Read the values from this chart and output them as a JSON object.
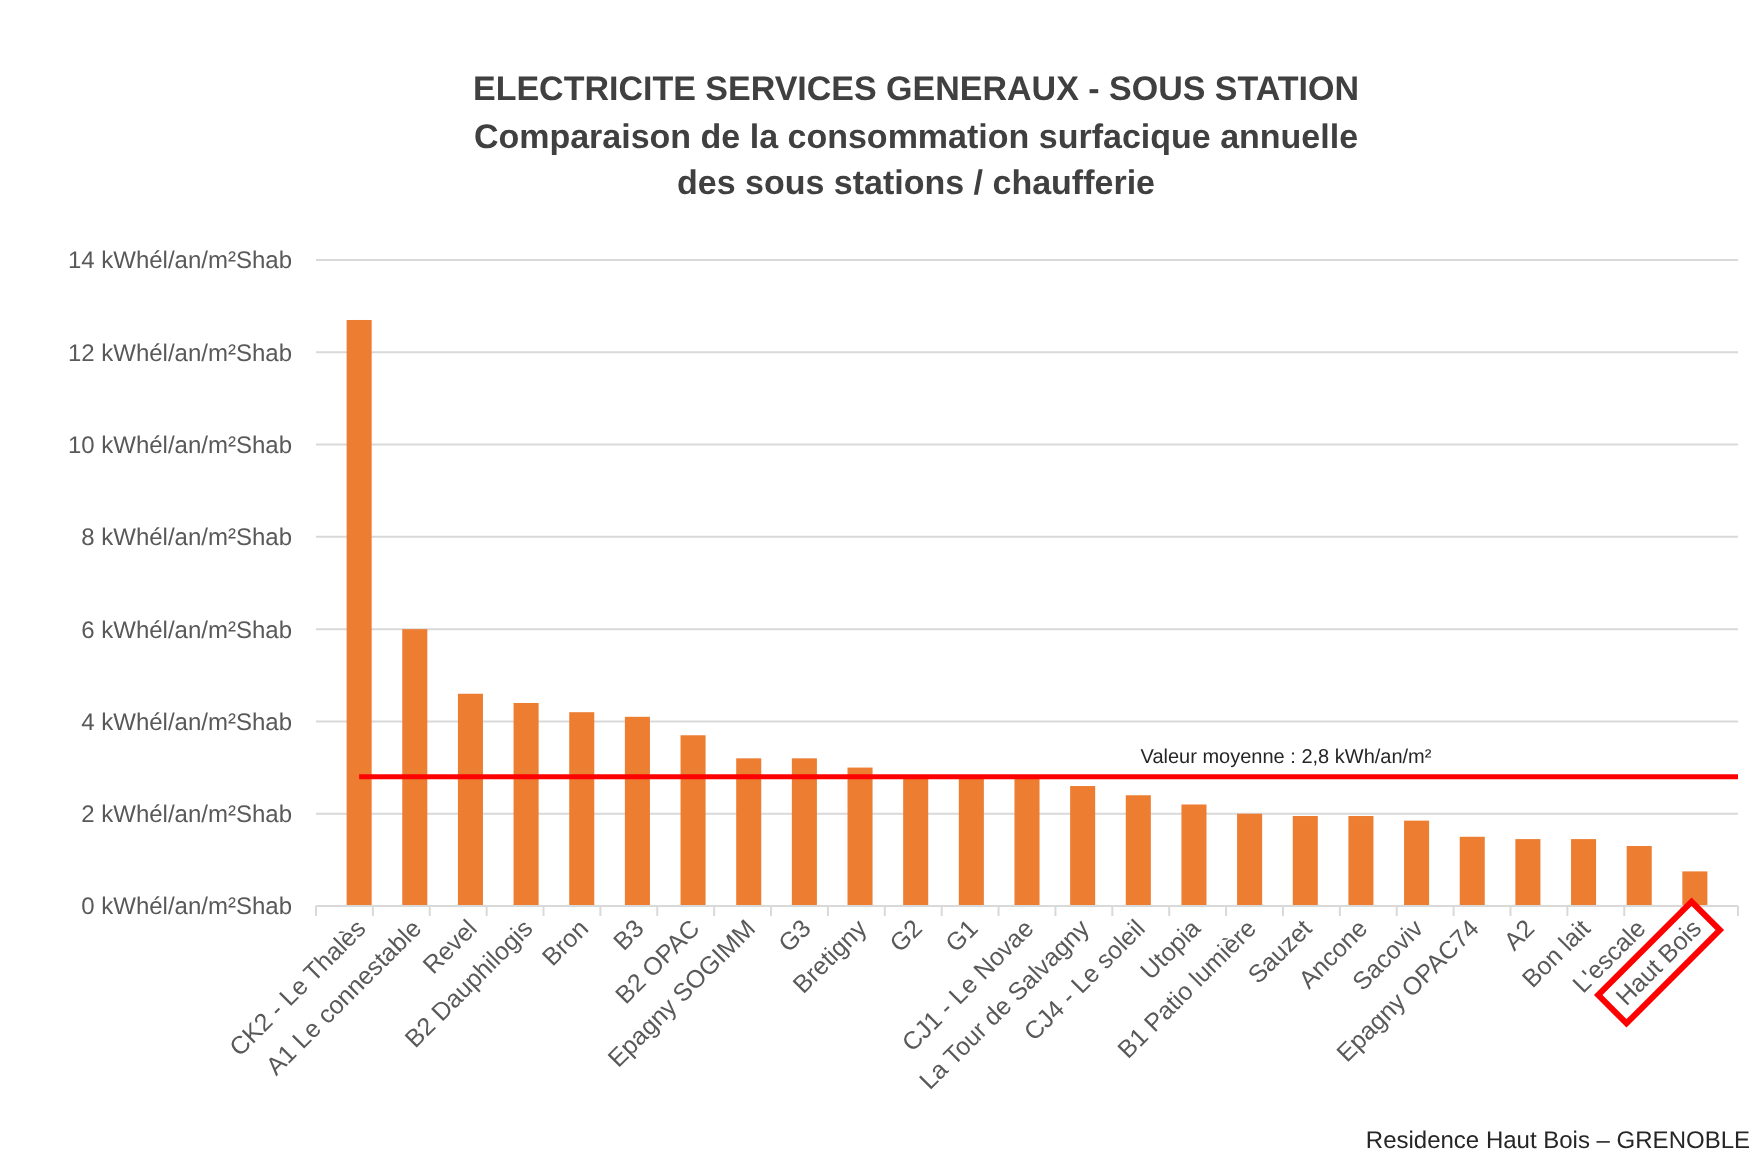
{
  "chart_data": {
    "type": "bar",
    "title": "ELECTRICITE SERVICES GENERAUX - SOUS STATION",
    "subtitle": "Comparaison de la consommation surfacique annuelle\ndes sous stations / chaufferie",
    "categories": [
      "CK2 - Le Thalès",
      "A1 Le connestable",
      "Revel",
      "B2 Dauphilogis",
      "Bron",
      "B3",
      "B2 OPAC",
      "Epagny SOGIMM",
      "G3",
      "Bretigny",
      "G2",
      "G1",
      "CJ1 - Le Novae",
      "La Tour de Salvagny",
      "CJ4 - Le soleil",
      "Utopia",
      "B1  Patio lumière",
      "Sauzet",
      "Ancone",
      "Sacoviv",
      "Epagny OPAC74",
      "A2",
      "Bon lait",
      "L'escale",
      "Haut Bois"
    ],
    "values": [
      12.7,
      6.0,
      4.6,
      4.4,
      4.2,
      4.1,
      3.7,
      3.2,
      3.2,
      3.0,
      2.8,
      2.8,
      2.8,
      2.6,
      2.4,
      2.2,
      2.0,
      1.95,
      1.95,
      1.85,
      1.5,
      1.45,
      1.45,
      1.3,
      0.75
    ],
    "color": "#ed7d31",
    "ylim": [
      0,
      14
    ],
    "yticks": [
      {
        "value": 0,
        "label": "0 kWhél/an/m²Shab"
      },
      {
        "value": 2,
        "label": "2 kWhél/an/m²Shab"
      },
      {
        "value": 4,
        "label": "4 kWhél/an/m²Shab"
      },
      {
        "value": 6,
        "label": "6 kWhél/an/m²Shab"
      },
      {
        "value": 8,
        "label": "8 kWhél/an/m²Shab"
      },
      {
        "value": 10,
        "label": "10 kWhél/an/m²Shab"
      },
      {
        "value": 12,
        "label": "12 kWhél/an/m²Shab"
      },
      {
        "value": 14,
        "label": "14 kWhél/an/m²Shab"
      }
    ],
    "grid": "y",
    "ref_lines": [
      {
        "axis": "y",
        "value": 2.8,
        "label": "Valeur moyenne : 2,8 kWh/an/m²",
        "color": "#ff0000"
      }
    ],
    "annotations": [
      "Residence Haut Bois – GRENOBLE"
    ]
  }
}
